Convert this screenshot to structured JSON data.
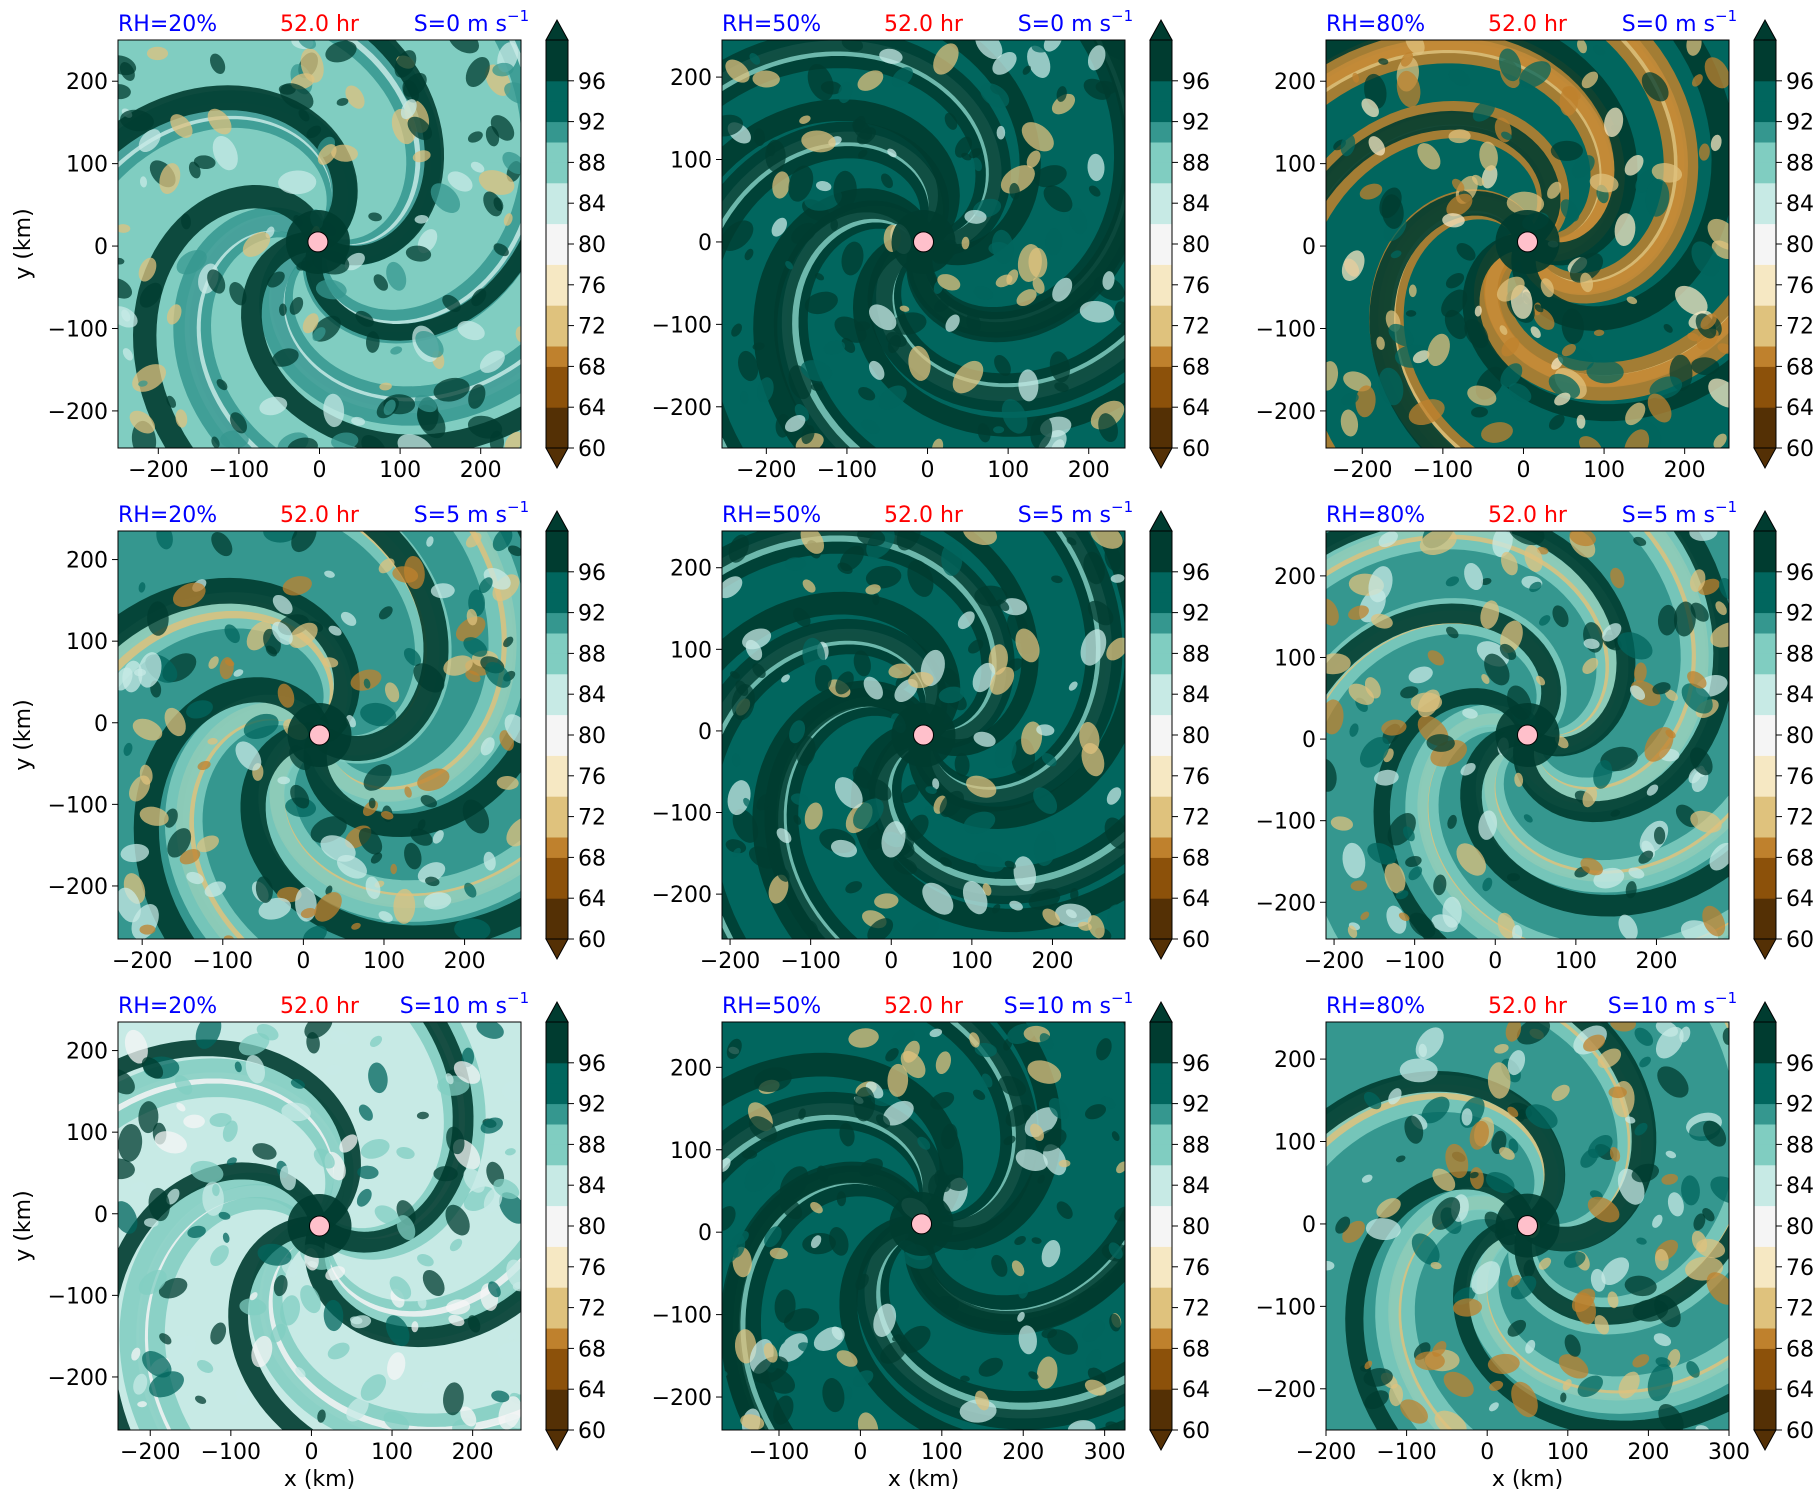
{
  "figure": {
    "colormap": [
      "#543005",
      "#8c510a",
      "#bf812d",
      "#dfc27d",
      "#f6e8c3",
      "#f5f5f5",
      "#c7eae5",
      "#80cdc1",
      "#35978f",
      "#01665e",
      "#003c30"
    ],
    "colorbar": {
      "ticks": [
        "60",
        "64",
        "68",
        "72",
        "76",
        "80",
        "84",
        "88",
        "92",
        "96"
      ],
      "level_min": 60,
      "level_max": 100,
      "level_step": 2,
      "extend": "both"
    },
    "title_colors": {
      "left": "#0000ff",
      "center": "#ff0000",
      "right": "#0000ff"
    },
    "center_marker_color": "#ffc0cb"
  },
  "chart_data": [
    {
      "type": "heatmap",
      "title_left": "RH=20%",
      "title_center": "52.0 hr",
      "title_right": "S=0 m s",
      "title_right_sup": "−1",
      "xlim": [
        -250,
        250
      ],
      "ylim": [
        -245,
        250
      ],
      "xticks": [
        -200,
        -100,
        0,
        100,
        200
      ],
      "yticks": [
        -200,
        -100,
        0,
        100,
        200
      ],
      "ylabel": "y (km)",
      "xlabel": "",
      "center": [
        -2,
        5
      ],
      "moisture": "dry",
      "swirl": 1.0
    },
    {
      "type": "heatmap",
      "title_left": "RH=50%",
      "title_center": "52.0 hr",
      "title_right": "S=0 m s",
      "title_right_sup": "−1",
      "xlim": [
        -255,
        245
      ],
      "ylim": [
        -250,
        245
      ],
      "xticks": [
        -200,
        -100,
        0,
        100,
        200
      ],
      "yticks": [
        -200,
        -100,
        0,
        100,
        200
      ],
      "ylabel": "",
      "xlabel": "",
      "center": [
        -5,
        0
      ],
      "moisture": "moist",
      "swirl": 1.1
    },
    {
      "type": "heatmap",
      "title_left": "RH=80%",
      "title_center": "52.0 hr",
      "title_right": "S=0 m s",
      "title_right_sup": "−1",
      "xlim": [
        -245,
        255
      ],
      "ylim": [
        -245,
        250
      ],
      "xticks": [
        -200,
        -100,
        0,
        100,
        200
      ],
      "yticks": [
        -200,
        -100,
        0,
        100,
        200
      ],
      "ylabel": "",
      "xlabel": "",
      "center": [
        5,
        5
      ],
      "moisture": "spiral",
      "swirl": 1.2
    },
    {
      "type": "heatmap",
      "title_left": "RH=20%",
      "title_center": "52.0 hr",
      "title_right": "S=5 m s",
      "title_right_sup": "−1",
      "xlim": [
        -230,
        270
      ],
      "ylim": [
        -265,
        235
      ],
      "xticks": [
        -200,
        -100,
        0,
        100,
        200
      ],
      "yticks": [
        -200,
        -100,
        0,
        100,
        200
      ],
      "ylabel": "y (km)",
      "xlabel": "",
      "center": [
        20,
        -15
      ],
      "moisture": "mixed",
      "swirl": 1.0
    },
    {
      "type": "heatmap",
      "title_left": "RH=50%",
      "title_center": "52.0 hr",
      "title_right": "S=5 m s",
      "title_right_sup": "−1",
      "xlim": [
        -210,
        290
      ],
      "ylim": [
        -255,
        245
      ],
      "xticks": [
        -200,
        -100,
        0,
        100,
        200
      ],
      "yticks": [
        -200,
        -100,
        0,
        100,
        200
      ],
      "ylabel": "",
      "xlabel": "",
      "center": [
        40,
        -5
      ],
      "moisture": "moist",
      "swirl": 1.1
    },
    {
      "type": "heatmap",
      "title_left": "RH=80%",
      "title_center": "52.0 hr",
      "title_right": "S=5 m s",
      "title_right_sup": "−1",
      "xlim": [
        -210,
        290
      ],
      "ylim": [
        -245,
        255
      ],
      "xticks": [
        -200,
        -100,
        0,
        100,
        200
      ],
      "yticks": [
        -200,
        -100,
        0,
        100,
        200
      ],
      "ylabel": "",
      "xlabel": "",
      "center": [
        40,
        5
      ],
      "moisture": "mixed",
      "swirl": 1.2
    },
    {
      "type": "heatmap",
      "title_left": "RH=20%",
      "title_center": "52.0 hr",
      "title_right": "S=10 m s",
      "title_right_sup": "−1",
      "xlim": [
        -240,
        260
      ],
      "ylim": [
        -265,
        235
      ],
      "xticks": [
        -200,
        -100,
        0,
        100,
        200
      ],
      "yticks": [
        -200,
        -100,
        0,
        100,
        200
      ],
      "ylabel": "y (km)",
      "xlabel": "x (km)",
      "center": [
        10,
        -15
      ],
      "moisture": "light",
      "swirl": 0.8
    },
    {
      "type": "heatmap",
      "title_left": "RH=50%",
      "title_center": "52.0 hr",
      "title_right": "S=10 m s",
      "title_right_sup": "−1",
      "xlim": [
        -170,
        325
      ],
      "ylim": [
        -240,
        255
      ],
      "xticks": [
        -100,
        0,
        100,
        200,
        300
      ],
      "yticks": [
        -200,
        -100,
        0,
        100,
        200
      ],
      "ylabel": "",
      "xlabel": "x (km)",
      "center": [
        75,
        10
      ],
      "moisture": "moist",
      "swirl": 0.9
    },
    {
      "type": "heatmap",
      "title_left": "RH=80%",
      "title_center": "52.0 hr",
      "title_right": "S=10 m s",
      "title_right_sup": "−1",
      "xlim": [
        -200,
        300
      ],
      "ylim": [
        -250,
        245
      ],
      "xticks": [
        -200,
        -100,
        0,
        100,
        200,
        300
      ],
      "yticks": [
        -200,
        -100,
        0,
        100,
        200
      ],
      "ylabel": "",
      "xlabel": "x (km)",
      "center": [
        50,
        -2
      ],
      "moisture": "mixed",
      "swirl": 1.0
    }
  ]
}
